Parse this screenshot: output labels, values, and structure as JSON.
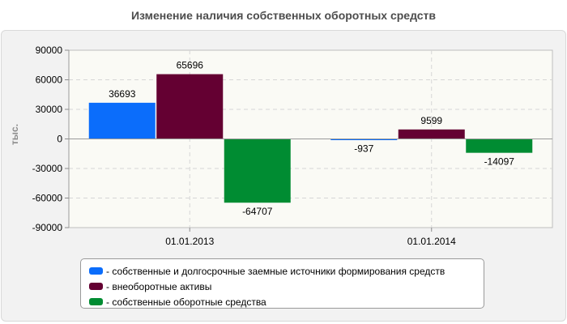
{
  "chart_data": {
    "type": "bar",
    "title": "Изменение наличия собственных оборотных средств",
    "ylabel": "тыс.",
    "xlabel": "",
    "categories": [
      "01.01.2013",
      "01.01.2014"
    ],
    "series": [
      {
        "name": "- собственные и долгосрочные заемные источники формирования средств",
        "color": "#0b6dfb",
        "values": [
          36693,
          -937
        ]
      },
      {
        "name": "- внеоборотные активы",
        "color": "#640032",
        "values": [
          65696,
          9599
        ]
      },
      {
        "name": "- собственные оборотные средства",
        "color": "#008c32",
        "values": [
          -64707,
          -14097
        ]
      }
    ],
    "ylim": [
      -90000,
      90000
    ],
    "yticks": [
      90000,
      60000,
      30000,
      0,
      -30000,
      -60000,
      -90000
    ],
    "grid": true,
    "legend_position": "bottom"
  }
}
